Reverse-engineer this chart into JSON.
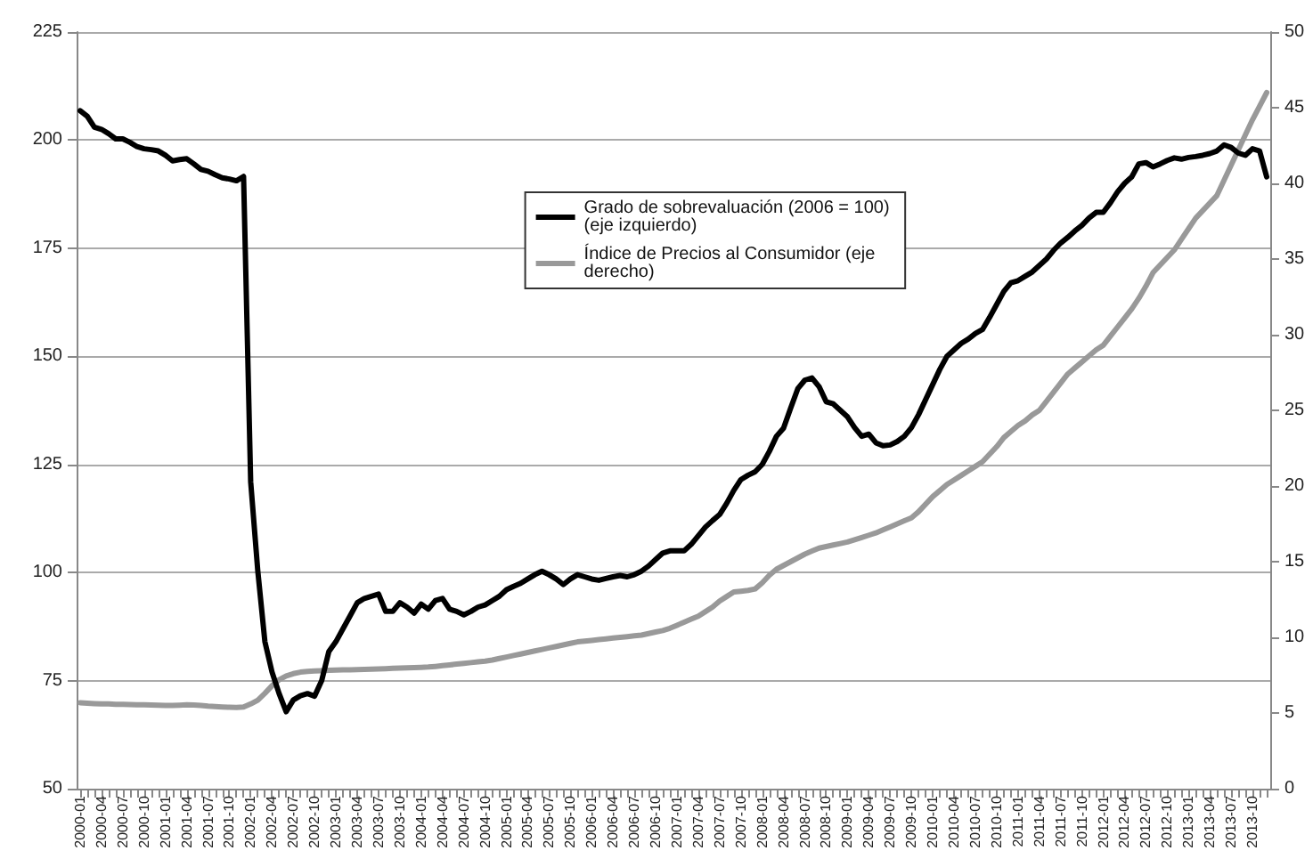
{
  "chart_data": {
    "type": "line",
    "categories": [
      "2000-01",
      null,
      null,
      "2000-04",
      null,
      null,
      "2000-07",
      null,
      null,
      "2000-10",
      null,
      null,
      "2001-01",
      null,
      null,
      "2001-04",
      null,
      null,
      "2001-07",
      null,
      null,
      "2001-10",
      null,
      null,
      "2002-01",
      null,
      null,
      "2002-04",
      null,
      null,
      "2002-07",
      null,
      null,
      "2002-10",
      null,
      null,
      "2003-01",
      null,
      null,
      "2003-04",
      null,
      null,
      "2003-07",
      null,
      null,
      "2003-10",
      null,
      null,
      "2004-01",
      null,
      null,
      "2004-04",
      null,
      null,
      "2004-07",
      null,
      null,
      "2004-10",
      null,
      null,
      "2005-01",
      null,
      null,
      "2005-04",
      null,
      null,
      "2005-07",
      null,
      null,
      "2005-10",
      null,
      null,
      "2006-01",
      null,
      null,
      "2006-04",
      null,
      null,
      "2006-07",
      null,
      null,
      "2006-10",
      null,
      null,
      "2007-01",
      null,
      null,
      "2007-04",
      null,
      null,
      "2007-07",
      null,
      null,
      "2007-10",
      null,
      null,
      "2008-01",
      null,
      null,
      "2008-04",
      null,
      null,
      "2008-07",
      null,
      null,
      "2008-10",
      null,
      null,
      "2009-01",
      null,
      null,
      "2009-04",
      null,
      null,
      "2009-07",
      null,
      null,
      "2009-10",
      null,
      null,
      "2010-01",
      null,
      null,
      "2010-04",
      null,
      null,
      "2010-07",
      null,
      null,
      "2010-10",
      null,
      null,
      "2011-01",
      null,
      null,
      "2011-04",
      null,
      null,
      "2011-07",
      null,
      null,
      "2011-10",
      null,
      null,
      "2012-01",
      null,
      null,
      "2012-04",
      null,
      null,
      "2012-07",
      null,
      null,
      "2012-10",
      null,
      null,
      "2013-01",
      null,
      null,
      "2013-04",
      null,
      null,
      "2013-07",
      null,
      null,
      "2013-10",
      null,
      null
    ],
    "series": [
      {
        "name": "Grado de sobrevaluación (2006 = 100) (eje izquierdo)",
        "color": "#000000",
        "values": [
          206.8,
          205.5,
          203,
          202.5,
          201.5,
          200.3,
          200.3,
          199.5,
          198.5,
          198,
          197.8,
          197.5,
          196.5,
          195.2,
          195.5,
          195.7,
          194.5,
          193.2,
          192.8,
          192,
          191.3,
          191,
          190.6,
          191.6,
          121,
          100.4,
          84,
          77,
          72,
          67.8,
          70.5,
          71.5,
          72,
          71.4,
          75,
          81.7,
          84,
          87,
          90,
          93,
          94,
          94.5,
          95,
          91,
          91,
          93,
          92,
          90.6,
          92.7,
          91.5,
          93.5,
          94,
          91.5,
          91,
          90.2,
          91,
          92,
          92.5,
          93.5,
          94.5,
          96,
          96.8,
          97.5,
          98.5,
          99.5,
          100.3,
          99.5,
          98.5,
          97.2,
          98.5,
          99.5,
          99,
          98.5,
          98.2,
          98.6,
          99,
          99.3,
          99,
          99.5,
          100.3,
          101.5,
          103,
          104.5,
          105,
          105,
          105,
          106.5,
          108.5,
          110.5,
          112,
          113.4,
          116,
          119,
          121.5,
          122.5,
          123.3,
          125,
          128,
          131.5,
          133.4,
          138,
          142.5,
          144.5,
          145,
          143,
          139.5,
          139,
          137.5,
          136,
          133.5,
          131.5,
          132,
          130,
          129.3,
          129.5,
          130.3,
          131.5,
          133.5,
          136.5,
          140,
          143.5,
          147,
          150,
          151.5,
          153,
          154,
          155.3,
          156.2,
          159,
          162,
          165,
          167,
          167.5,
          168.5,
          169.5,
          171,
          172.5,
          174.5,
          176.2,
          177.5,
          179,
          180.3,
          182,
          183.3,
          183.3,
          185.5,
          188,
          190,
          191.5,
          194.5,
          194.8,
          193.8,
          194.5,
          195.3,
          195.9,
          195.6,
          196,
          196.2,
          196.5,
          196.9,
          197.5,
          198.9,
          198.3,
          197,
          196.5,
          198,
          197.5,
          191.5
        ]
      },
      {
        "name": "Índice de Precios al Consumidor (eje derecho)",
        "color": "#999999",
        "axis": "y2",
        "values": [
          5.68,
          5.65,
          5.62,
          5.6,
          5.6,
          5.58,
          5.57,
          5.56,
          5.55,
          5.55,
          5.53,
          5.52,
          5.5,
          5.5,
          5.52,
          5.55,
          5.53,
          5.5,
          5.45,
          5.42,
          5.4,
          5.38,
          5.37,
          5.4,
          5.6,
          5.85,
          6.3,
          6.8,
          7.2,
          7.45,
          7.6,
          7.7,
          7.75,
          7.78,
          7.8,
          7.82,
          7.84,
          7.85,
          7.86,
          7.87,
          7.88,
          7.9,
          7.91,
          7.93,
          7.95,
          7.97,
          7.99,
          8.0,
          8.02,
          8.04,
          8.08,
          8.13,
          8.18,
          8.23,
          8.28,
          8.33,
          8.38,
          8.43,
          8.5,
          8.6,
          8.7,
          8.8,
          8.9,
          9.0,
          9.1,
          9.2,
          9.3,
          9.4,
          9.5,
          9.6,
          9.7,
          9.75,
          9.8,
          9.85,
          9.9,
          9.95,
          10.0,
          10.05,
          10.1,
          10.15,
          10.25,
          10.35,
          10.45,
          10.6,
          10.8,
          11.0,
          11.2,
          11.4,
          11.7,
          12.0,
          12.4,
          12.7,
          13.0,
          13.05,
          13.1,
          13.2,
          13.6,
          14.1,
          14.5,
          14.75,
          15.0,
          15.25,
          15.5,
          15.7,
          15.9,
          16.0,
          16.1,
          16.2,
          16.3,
          16.45,
          16.6,
          16.75,
          16.9,
          17.1,
          17.3,
          17.5,
          17.7,
          17.9,
          18.3,
          18.8,
          19.3,
          19.7,
          20.1,
          20.4,
          20.7,
          21.0,
          21.3,
          21.6,
          22.1,
          22.6,
          23.2,
          23.6,
          24.0,
          24.3,
          24.7,
          25.0,
          25.6,
          26.2,
          26.8,
          27.4,
          27.8,
          28.2,
          28.6,
          29.0,
          29.3,
          29.9,
          30.5,
          31.1,
          31.7,
          32.4,
          33.2,
          34.1,
          34.6,
          35.1,
          35.6,
          36.3,
          37.0,
          37.7,
          38.2,
          38.7,
          39.2,
          40.2,
          41.2,
          42.2,
          43.2,
          44.2,
          45.1,
          46.0
        ]
      }
    ],
    "ylim": [
      50,
      225
    ],
    "yticks": [
      50,
      75,
      100,
      125,
      150,
      175,
      200,
      225
    ],
    "y2lim": [
      0,
      50
    ],
    "y2ticks": [
      0,
      5,
      10,
      15,
      20,
      25,
      30,
      35,
      40,
      45,
      50
    ],
    "grid": "y",
    "legend": "top right",
    "marker": "none",
    "line_style": "solid"
  }
}
